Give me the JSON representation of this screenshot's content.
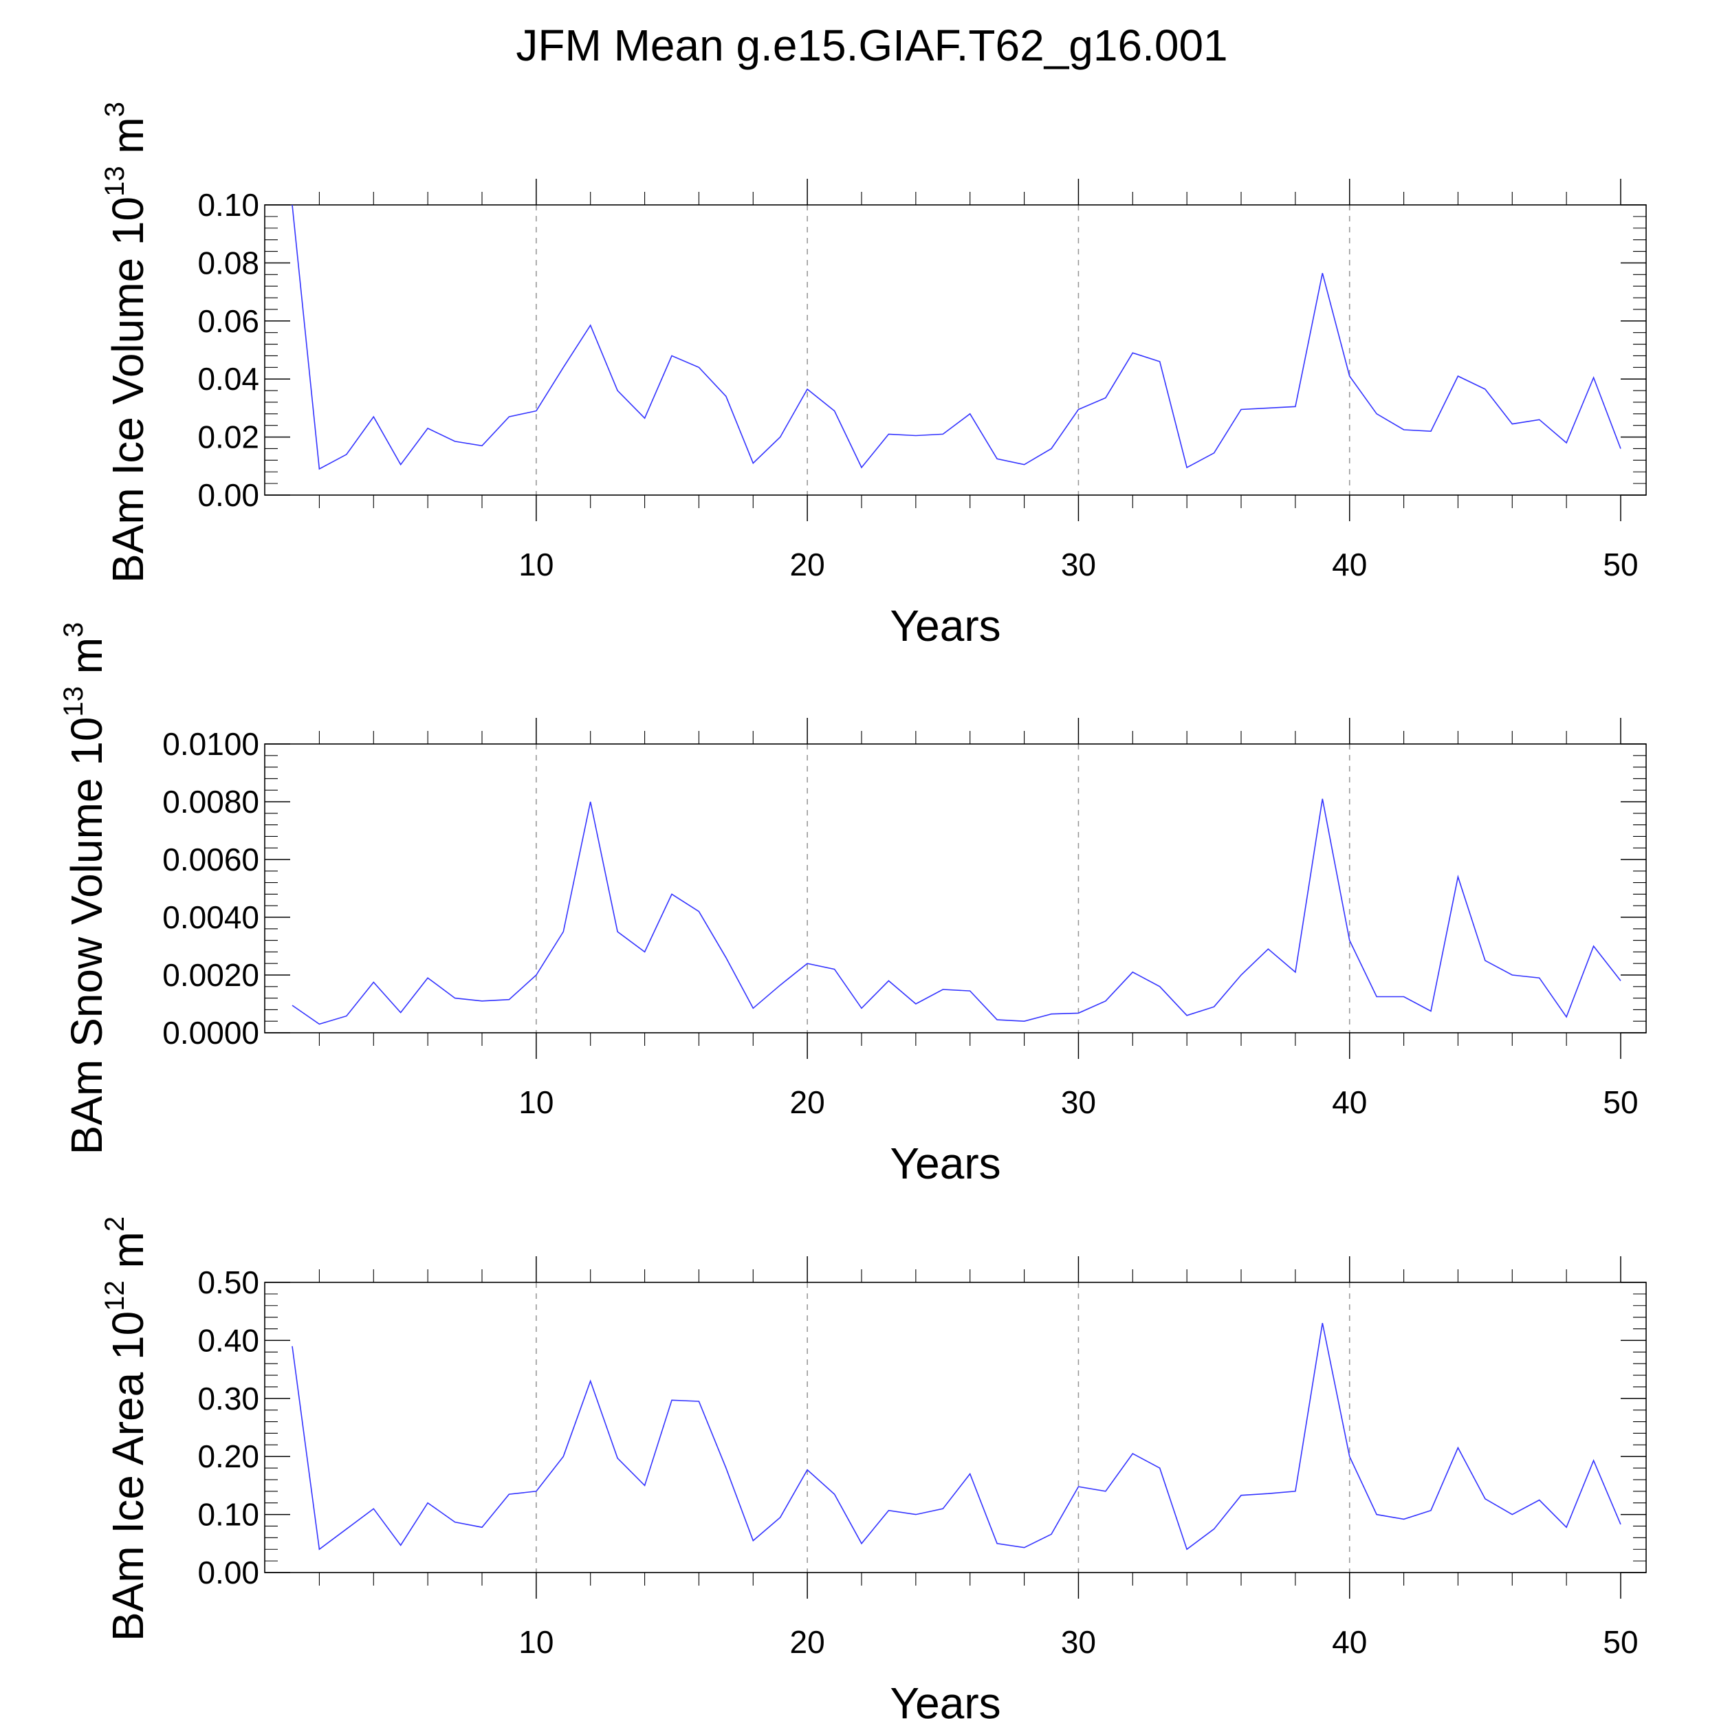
{
  "figure_title": "JFM Mean g.e15.GIAF.T62_g16.001",
  "colors": {
    "series": "#3333ff",
    "grid": "#999999",
    "axis": "#000000"
  },
  "chart_data": [
    {
      "type": "line",
      "title": "",
      "ylabel": {
        "main": "BAm Ice Volume 10",
        "exp": "13",
        "unit": " m",
        "unit_exp": "3"
      },
      "xlabel": "Years",
      "xlim": [
        1,
        50
      ],
      "xticks": [
        10,
        20,
        30,
        40,
        50
      ],
      "ylim": [
        0,
        0.1
      ],
      "yticks": [
        "0.00",
        "0.02",
        "0.04",
        "0.06",
        "0.08",
        "0.10"
      ],
      "grid": "vertical dashed at x ticks",
      "series": [
        {
          "name": "BAm Ice Volume",
          "x": [
            1,
            2,
            3,
            4,
            5,
            6,
            7,
            8,
            9,
            10,
            11,
            12,
            13,
            14,
            15,
            16,
            17,
            18,
            19,
            20,
            21,
            22,
            23,
            24,
            25,
            26,
            27,
            28,
            29,
            30,
            31,
            32,
            33,
            34,
            35,
            36,
            37,
            38,
            39,
            40,
            41,
            42,
            43,
            44,
            45,
            46,
            47,
            48,
            49,
            50
          ],
          "values": [
            0.1,
            0.009,
            0.014,
            0.027,
            0.0105,
            0.023,
            0.0185,
            0.017,
            0.027,
            0.029,
            0.044,
            0.0585,
            0.036,
            0.0265,
            0.048,
            0.044,
            0.034,
            0.011,
            0.02,
            0.0365,
            0.029,
            0.0095,
            0.021,
            0.0205,
            0.021,
            0.028,
            0.0125,
            0.0105,
            0.016,
            0.0295,
            0.0335,
            0.049,
            0.046,
            0.0095,
            0.0145,
            0.0295,
            0.03,
            0.0305,
            0.0765,
            0.041,
            0.028,
            0.0225,
            0.022,
            0.041,
            0.0365,
            0.0245,
            0.026,
            0.018,
            0.0405,
            0.016
          ]
        }
      ]
    },
    {
      "type": "line",
      "title": "",
      "ylabel": {
        "main": "BAm Snow Volume 10",
        "exp": "13",
        "unit": " m",
        "unit_exp": "3"
      },
      "xlabel": "Years",
      "xlim": [
        1,
        50
      ],
      "xticks": [
        10,
        20,
        30,
        40,
        50
      ],
      "ylim": [
        0,
        0.01
      ],
      "yticks": [
        "0.0000",
        "0.0020",
        "0.0040",
        "0.0060",
        "0.0080",
        "0.0100"
      ],
      "grid": "vertical dashed at x ticks",
      "series": [
        {
          "name": "BAm Snow Volume",
          "x": [
            1,
            2,
            3,
            4,
            5,
            6,
            7,
            8,
            9,
            10,
            11,
            12,
            13,
            14,
            15,
            16,
            17,
            18,
            19,
            20,
            21,
            22,
            23,
            24,
            25,
            26,
            27,
            28,
            29,
            30,
            31,
            32,
            33,
            34,
            35,
            36,
            37,
            38,
            39,
            40,
            41,
            42,
            43,
            44,
            45,
            46,
            47,
            48,
            49,
            50
          ],
          "values": [
            0.00095,
            0.0003,
            0.00058,
            0.00175,
            0.0007,
            0.0019,
            0.0012,
            0.0011,
            0.00115,
            0.002,
            0.0035,
            0.008,
            0.0035,
            0.0028,
            0.0048,
            0.0042,
            0.0026,
            0.00085,
            0.00165,
            0.0024,
            0.0022,
            0.00085,
            0.0018,
            0.001,
            0.0015,
            0.00145,
            0.00045,
            0.0004,
            0.00065,
            0.00068,
            0.0011,
            0.0021,
            0.0016,
            0.0006,
            0.0009,
            0.002,
            0.0029,
            0.0021,
            0.0081,
            0.0032,
            0.00125,
            0.00125,
            0.00075,
            0.0054,
            0.0025,
            0.002,
            0.0019,
            0.00055,
            0.003,
            0.0018
          ]
        }
      ]
    },
    {
      "type": "line",
      "title": "",
      "ylabel": {
        "main": "BAm Ice Area 10",
        "exp": "12",
        "unit": " m",
        "unit_exp": "2"
      },
      "xlabel": "Years",
      "xlim": [
        1,
        50
      ],
      "xticks": [
        10,
        20,
        30,
        40,
        50
      ],
      "ylim": [
        0,
        0.5
      ],
      "yticks": [
        "0.00",
        "0.10",
        "0.20",
        "0.30",
        "0.40",
        "0.50"
      ],
      "grid": "vertical dashed at x ticks",
      "series": [
        {
          "name": "BAm Ice Area",
          "x": [
            1,
            2,
            3,
            4,
            5,
            6,
            7,
            8,
            9,
            10,
            11,
            12,
            13,
            14,
            15,
            16,
            17,
            18,
            19,
            20,
            21,
            22,
            23,
            24,
            25,
            26,
            27,
            28,
            29,
            30,
            31,
            32,
            33,
            34,
            35,
            36,
            37,
            38,
            39,
            40,
            41,
            42,
            43,
            44,
            45,
            46,
            47,
            48,
            49,
            50
          ],
          "values": [
            0.39,
            0.04,
            0.075,
            0.11,
            0.047,
            0.12,
            0.087,
            0.078,
            0.135,
            0.14,
            0.2,
            0.33,
            0.197,
            0.15,
            0.297,
            0.295,
            0.18,
            0.055,
            0.095,
            0.177,
            0.135,
            0.05,
            0.107,
            0.1,
            0.11,
            0.17,
            0.05,
            0.043,
            0.066,
            0.148,
            0.14,
            0.205,
            0.18,
            0.04,
            0.075,
            0.133,
            0.136,
            0.14,
            0.43,
            0.2,
            0.1,
            0.092,
            0.107,
            0.215,
            0.127,
            0.1,
            0.125,
            0.078,
            0.193,
            0.083
          ]
        }
      ]
    }
  ]
}
